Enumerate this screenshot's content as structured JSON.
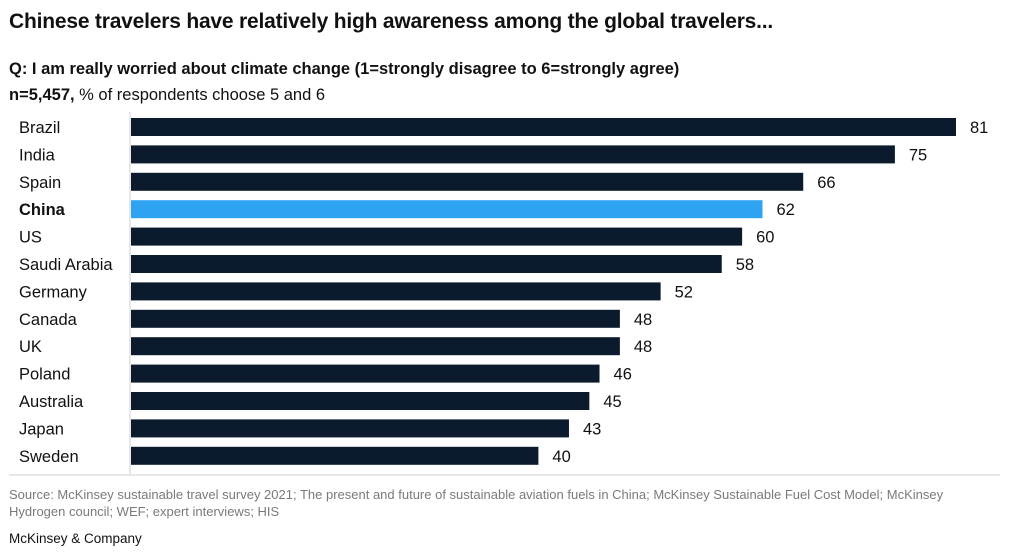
{
  "header": {
    "title": "Chinese travelers have relatively high awareness among the global travelers...",
    "question": "Q: I am really worried about climate change (1=strongly disagree to 6=strongly agree)",
    "sample_size": "n=5,457,",
    "note": " % of respondents choose 5 and 6"
  },
  "chart_data": {
    "type": "bar",
    "orientation": "horizontal",
    "categories": [
      "Brazil",
      "India",
      "Spain",
      "China",
      "US",
      "Saudi Arabia",
      "Germany",
      "Canada",
      "UK",
      "Poland",
      "Australia",
      "Japan",
      "Sweden"
    ],
    "values": [
      81,
      75,
      66,
      62,
      60,
      58,
      52,
      48,
      48,
      46,
      45,
      43,
      40
    ],
    "highlight": "China",
    "xlim": [
      0,
      81
    ],
    "colors": {
      "default": "#0b1a2c",
      "highlight": "#2ea3f2",
      "axis": "#cfcfcf"
    }
  },
  "footer": {
    "source": "Source: McKinsey sustainable travel survey 2021; The present and future of sustainable aviation fuels in China; McKinsey Sustainable Fuel Cost Model; McKinsey Hydrogen council; WEF; expert interviews; HIS",
    "brand": "McKinsey & Company"
  }
}
